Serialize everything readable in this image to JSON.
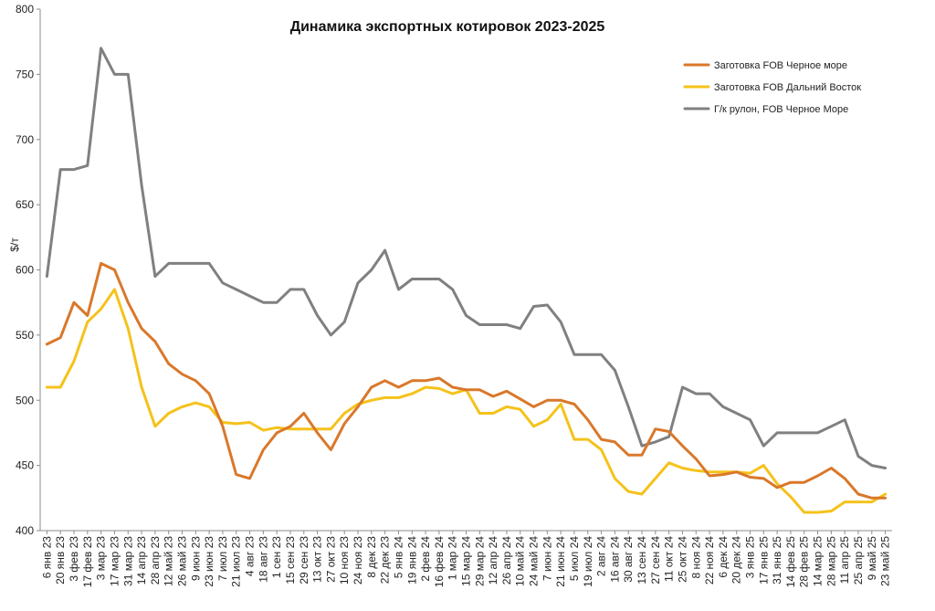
{
  "chart_data": {
    "type": "line",
    "title": "Динамика экспортных котировок 2023-2025",
    "ylabel": "$/т",
    "xlabel": "",
    "ylim": [
      400,
      800
    ],
    "yticks": [
      400,
      450,
      500,
      550,
      600,
      650,
      700,
      750,
      800
    ],
    "grid": false,
    "legend_position": "top-right",
    "x": [
      "6 янв 23",
      "20 янв 23",
      "3 фев 23",
      "17 фев 23",
      "3 мар 23",
      "17 мар 23",
      "31 мар 23",
      "14 апр 23",
      "28 апр 23",
      "12 май 23",
      "26 май 23",
      "9 июн 23",
      "23 июн 23",
      "7 июл 23",
      "21 июл 23",
      "4 авг 23",
      "18 авг 23",
      "1 сен 23",
      "15 сен 23",
      "29 сен 23",
      "13 окт 23",
      "27 окт 23",
      "10 ноя 23",
      "24 ноя 23",
      "8 дек 23",
      "22 дек 23",
      "5 янв 24",
      "19 янв 24",
      "2 фев 24",
      "16 фев 24",
      "1 мар 24",
      "15 мар 24",
      "29 мар 24",
      "12 апр 24",
      "26 апр 24",
      "10 май 24",
      "24 май 24",
      "7 июн 24",
      "21 июн 24",
      "5 июл 24",
      "19 июл 24",
      "2 авг 24",
      "16 авг 24",
      "30 авг 24",
      "13 сен 24",
      "27 сен 24",
      "11 окт 24",
      "25 окт 24",
      "8 ноя 24",
      "22 ноя 24",
      "6 дек 24",
      "20 дек 24",
      "3 янв 25",
      "17 янв 25",
      "31 янв 25",
      "14 фев 25",
      "28 фев 25",
      "14 мар 25",
      "28 мар 25",
      "11 апр 25",
      "25 апр 25",
      "9 май 25",
      "23 май 25"
    ],
    "series": [
      {
        "name": "Заготовка FOB Черное море",
        "color": "#d9782b",
        "values": [
          543,
          548,
          575,
          565,
          605,
          600,
          575,
          555,
          545,
          528,
          520,
          515,
          505,
          480,
          443,
          440,
          462,
          475,
          480,
          490,
          475,
          462,
          482,
          495,
          510,
          515,
          510,
          515,
          515,
          517,
          510,
          508,
          508,
          503,
          507,
          501,
          495,
          500,
          500,
          497,
          485,
          470,
          468,
          458,
          458,
          478,
          476,
          465,
          455,
          442,
          443,
          445,
          441,
          440,
          433,
          437,
          437,
          442,
          448,
          440,
          428,
          425,
          425
        ]
      },
      {
        "name": "Заготовка FOB Дальний Восток",
        "color": "#f5c21b",
        "values": [
          510,
          510,
          530,
          560,
          570,
          585,
          555,
          510,
          480,
          490,
          495,
          498,
          495,
          483,
          482,
          483,
          477,
          479,
          478,
          478,
          478,
          478,
          490,
          497,
          500,
          502,
          502,
          505,
          510,
          509,
          505,
          508,
          490,
          490,
          495,
          493,
          480,
          485,
          497,
          470,
          470,
          462,
          440,
          430,
          428,
          440,
          452,
          448,
          446,
          445,
          445,
          445,
          444,
          450,
          436,
          426,
          414,
          414,
          415,
          422,
          422,
          422,
          428
        ]
      },
      {
        "name": "Г/к рулон, FOB Черное Море",
        "color": "#808080",
        "values": [
          595,
          677,
          677,
          680,
          770,
          750,
          750,
          665,
          595,
          605,
          605,
          605,
          605,
          590,
          585,
          580,
          575,
          575,
          585,
          585,
          565,
          550,
          560,
          590,
          600,
          615,
          585,
          593,
          593,
          593,
          585,
          565,
          558,
          558,
          558,
          555,
          572,
          573,
          560,
          535,
          535,
          535,
          523,
          495,
          465,
          468,
          472,
          510,
          505,
          505,
          495,
          490,
          485,
          465,
          475,
          475,
          475,
          475,
          480,
          485,
          457,
          450,
          448
        ]
      }
    ]
  }
}
